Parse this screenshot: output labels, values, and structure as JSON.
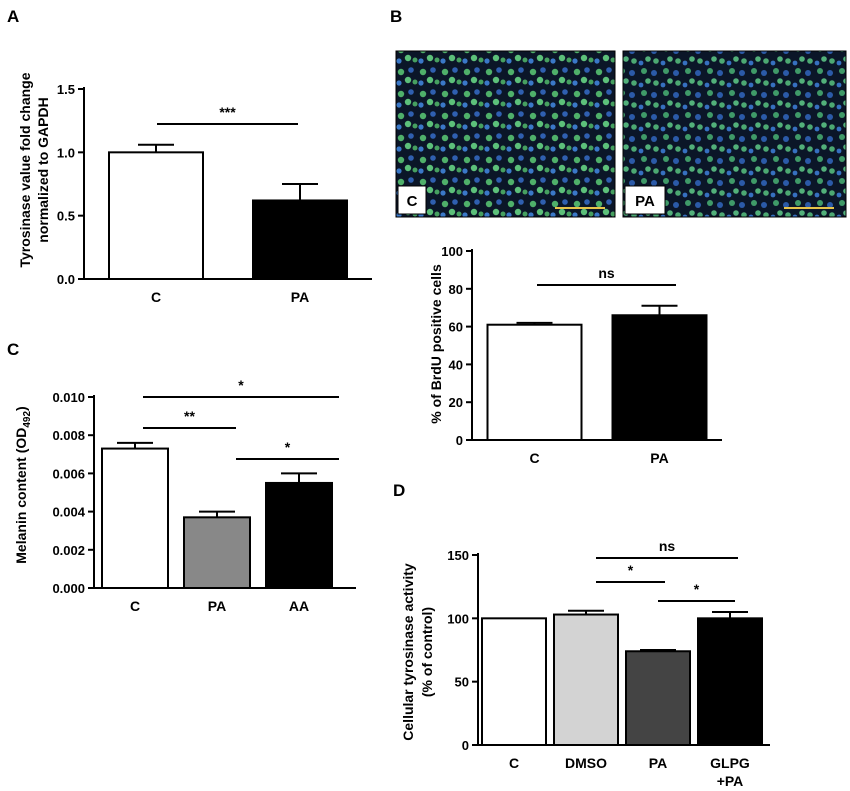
{
  "panels": {
    "a": "A",
    "b": "B",
    "c": "C",
    "d": "D"
  },
  "images": {
    "left_tag": "C",
    "right_tag": "PA"
  },
  "chart_data": [
    {
      "id": "A",
      "type": "bar",
      "categories": [
        "C",
        "PA"
      ],
      "values": [
        1.0,
        0.62
      ],
      "errors": [
        0.06,
        0.13
      ],
      "bar_colors": [
        "#ffffff",
        "#000000"
      ],
      "title": "",
      "xlabel": "",
      "ylabel_lines": [
        "Tyrosinase value fold change",
        "normalized to GAPDH"
      ],
      "ylim": [
        0,
        1.5
      ],
      "yticks": [
        "0.0",
        "0.5",
        "1.0",
        "1.5"
      ],
      "significance": [
        {
          "between": [
            "C",
            "PA"
          ],
          "label": "***"
        }
      ]
    },
    {
      "id": "B",
      "type": "bar",
      "categories": [
        "C",
        "PA"
      ],
      "values": [
        61,
        66
      ],
      "errors": [
        1,
        5
      ],
      "bar_colors": [
        "#ffffff",
        "#000000"
      ],
      "title": "",
      "xlabel": "",
      "ylabel": "% of BrdU positive cells",
      "ylim": [
        0,
        100
      ],
      "yticks": [
        "0",
        "20",
        "40",
        "60",
        "80",
        "100"
      ],
      "significance": [
        {
          "between": [
            "C",
            "PA"
          ],
          "label": "ns"
        }
      ]
    },
    {
      "id": "C",
      "type": "bar",
      "categories": [
        "C",
        "PA",
        "AA"
      ],
      "values": [
        0.0073,
        0.0037,
        0.0055
      ],
      "errors": [
        0.0003,
        0.0003,
        0.0005
      ],
      "bar_colors": [
        "#ffffff",
        "#888888",
        "#000000"
      ],
      "title": "",
      "xlabel": "",
      "ylabel_main": "Melanin content (OD",
      "ylabel_sub": "492",
      "ylabel_end": ")",
      "ylim": [
        0,
        0.01
      ],
      "yticks": [
        "0.000",
        "0.002",
        "0.004",
        "0.006",
        "0.008",
        "0.010"
      ],
      "significance": [
        {
          "between": [
            "C",
            "AA"
          ],
          "label": "*"
        },
        {
          "between": [
            "C",
            "PA"
          ],
          "label": "**"
        },
        {
          "between": [
            "PA",
            "AA"
          ],
          "label": "*"
        }
      ]
    },
    {
      "id": "D",
      "type": "bar",
      "categories": [
        "C",
        "DMSO",
        "PA",
        "GLPG\n+PA"
      ],
      "category_lines": [
        [
          "C"
        ],
        [
          "DMSO"
        ],
        [
          "PA"
        ],
        [
          "GLPG",
          "+PA"
        ]
      ],
      "values": [
        100,
        103,
        74,
        100
      ],
      "errors": [
        0,
        3,
        1,
        5
      ],
      "bar_colors": [
        "#ffffff",
        "#d3d3d3",
        "#444444",
        "#000000"
      ],
      "title": "",
      "xlabel": "",
      "ylabel_lines": [
        "Cellular tyrosinase activity",
        "(% of control)"
      ],
      "ylim": [
        0,
        150
      ],
      "yticks": [
        "0",
        "50",
        "100",
        "150"
      ],
      "significance": [
        {
          "between": [
            "DMSO",
            "GLPG\n+PA"
          ],
          "label": "ns"
        },
        {
          "between": [
            "DMSO",
            "PA"
          ],
          "label": "*"
        },
        {
          "between": [
            "PA",
            "GLPG\n+PA"
          ],
          "label": "*"
        }
      ]
    }
  ]
}
